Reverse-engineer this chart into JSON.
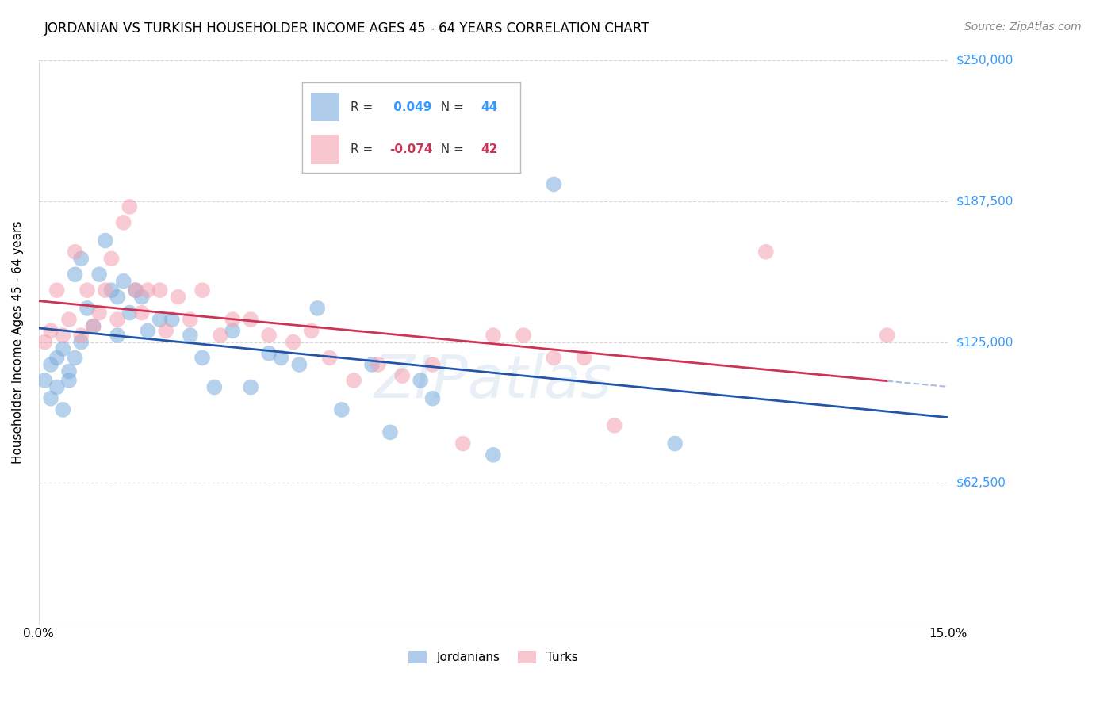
{
  "title": "JORDANIAN VS TURKISH HOUSEHOLDER INCOME AGES 45 - 64 YEARS CORRELATION CHART",
  "source": "Source: ZipAtlas.com",
  "ylabel": "Householder Income Ages 45 - 64 years",
  "xlim": [
    0.0,
    0.15
  ],
  "ylim": [
    0,
    250000
  ],
  "yticks": [
    0,
    62500,
    125000,
    187500,
    250000
  ],
  "ytick_labels": [
    "",
    "$62,500",
    "$125,000",
    "$187,500",
    "$250,000"
  ],
  "xticks": [
    0.0,
    0.05,
    0.1,
    0.15
  ],
  "xtick_labels": [
    "0.0%",
    "",
    "",
    "15.0%"
  ],
  "background_color": "#ffffff",
  "grid_color": "#cccccc",
  "blue_color": "#7aacdc",
  "pink_color": "#f4a0b0",
  "line_blue": "#2255aa",
  "line_pink": "#cc3355",
  "r_blue": 0.049,
  "n_blue": 44,
  "r_pink": -0.074,
  "n_pink": 42,
  "jordanians_x": [
    0.001,
    0.002,
    0.002,
    0.003,
    0.003,
    0.004,
    0.004,
    0.005,
    0.005,
    0.006,
    0.006,
    0.007,
    0.007,
    0.008,
    0.009,
    0.01,
    0.011,
    0.012,
    0.013,
    0.013,
    0.014,
    0.015,
    0.016,
    0.017,
    0.018,
    0.02,
    0.022,
    0.025,
    0.027,
    0.029,
    0.032,
    0.035,
    0.038,
    0.04,
    0.043,
    0.046,
    0.05,
    0.055,
    0.058,
    0.063,
    0.065,
    0.075,
    0.085,
    0.105
  ],
  "jordanians_y": [
    108000,
    115000,
    100000,
    118000,
    105000,
    122000,
    95000,
    112000,
    108000,
    118000,
    155000,
    162000,
    125000,
    140000,
    132000,
    155000,
    170000,
    148000,
    145000,
    128000,
    152000,
    138000,
    148000,
    145000,
    130000,
    135000,
    135000,
    128000,
    118000,
    105000,
    130000,
    105000,
    120000,
    118000,
    115000,
    140000,
    95000,
    115000,
    85000,
    108000,
    100000,
    75000,
    195000,
    80000
  ],
  "turks_x": [
    0.001,
    0.002,
    0.003,
    0.004,
    0.005,
    0.006,
    0.007,
    0.008,
    0.009,
    0.01,
    0.011,
    0.012,
    0.013,
    0.014,
    0.015,
    0.016,
    0.017,
    0.018,
    0.02,
    0.021,
    0.023,
    0.025,
    0.027,
    0.03,
    0.032,
    0.035,
    0.038,
    0.042,
    0.045,
    0.048,
    0.052,
    0.056,
    0.06,
    0.065,
    0.07,
    0.075,
    0.08,
    0.085,
    0.09,
    0.095,
    0.12,
    0.14
  ],
  "turks_y": [
    125000,
    130000,
    148000,
    128000,
    135000,
    165000,
    128000,
    148000,
    132000,
    138000,
    148000,
    162000,
    135000,
    178000,
    185000,
    148000,
    138000,
    148000,
    148000,
    130000,
    145000,
    135000,
    148000,
    128000,
    135000,
    135000,
    128000,
    125000,
    130000,
    118000,
    108000,
    115000,
    110000,
    115000,
    80000,
    128000,
    128000,
    118000,
    118000,
    88000,
    165000,
    128000
  ]
}
